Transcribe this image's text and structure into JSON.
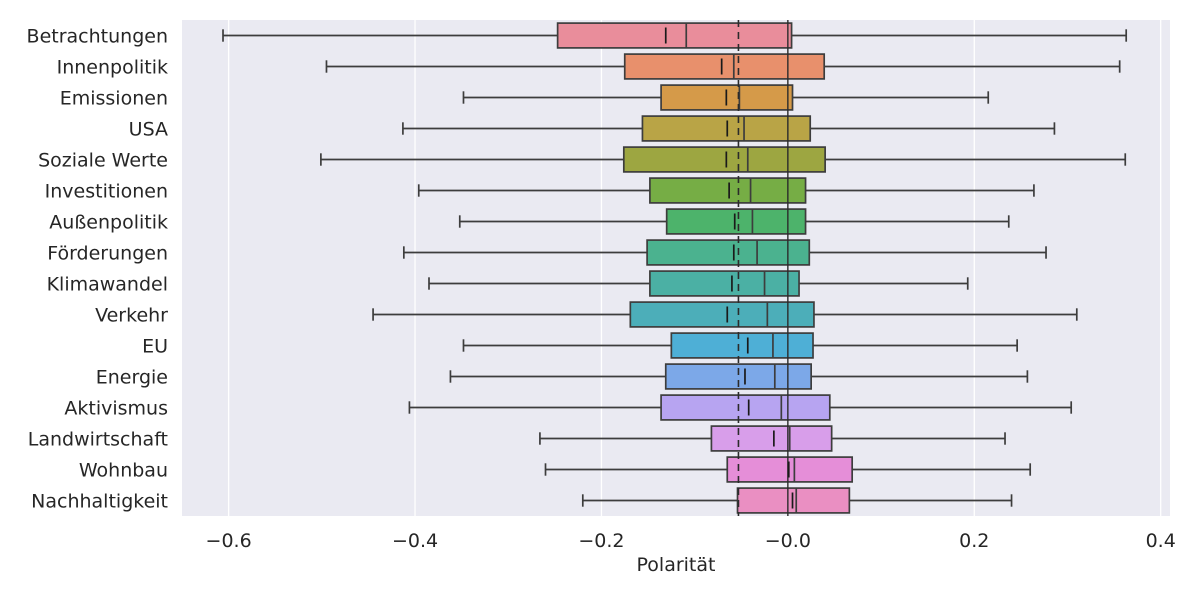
{
  "chart_data": {
    "type": "box",
    "orientation": "horizontal",
    "xlabel": "Polarität",
    "xlim": [
      -0.65,
      0.41
    ],
    "x_ticks": [
      -0.6,
      -0.4,
      -0.2,
      0.0,
      0.2,
      0.4
    ],
    "x_tick_labels": [
      "−0.6",
      "−0.4",
      "−0.2",
      "−0.0",
      "0.2",
      "0.4"
    ],
    "grid": true,
    "reference_lines": {
      "overall_mean_dashed": -0.053,
      "zero_solid": 0.0
    },
    "categories": [
      "Betrachtungen",
      "Innenpolitik",
      "Emissionen",
      "USA",
      "Soziale Werte",
      "Investitionen",
      "Außenpolitik",
      "Förderungen",
      "Klimawandel",
      "Verkehr",
      "EU",
      "Energie",
      "Aktivismus",
      "Landwirtschaft",
      "Wohnbau",
      "Nachhaltigkeit"
    ],
    "boxes": [
      {
        "category": "Betrachtungen",
        "color": "#e98d9b",
        "whisker_low": -0.606,
        "q1": -0.247,
        "median": -0.109,
        "q3": 0.004,
        "whisker_high": 0.363,
        "mean": -0.131
      },
      {
        "category": "Innenpolitik",
        "color": "#e8906c",
        "whisker_low": -0.495,
        "q1": -0.175,
        "median": -0.058,
        "q3": 0.039,
        "whisker_high": 0.356,
        "mean": -0.071
      },
      {
        "category": "Emissionen",
        "color": "#d59a49",
        "whisker_low": -0.348,
        "q1": -0.136,
        "median": -0.052,
        "q3": 0.005,
        "whisker_high": 0.215,
        "mean": -0.066
      },
      {
        "category": "USA",
        "color": "#b9a446",
        "whisker_low": -0.413,
        "q1": -0.156,
        "median": -0.047,
        "q3": 0.024,
        "whisker_high": 0.286,
        "mean": -0.065
      },
      {
        "category": "Soziale Werte",
        "color": "#9da641",
        "whisker_low": -0.501,
        "q1": -0.176,
        "median": -0.043,
        "q3": 0.04,
        "whisker_high": 0.362,
        "mean": -0.066
      },
      {
        "category": "Investitionen",
        "color": "#76ad45",
        "whisker_low": -0.396,
        "q1": -0.148,
        "median": -0.04,
        "q3": 0.019,
        "whisker_high": 0.264,
        "mean": -0.063
      },
      {
        "category": "Außenpolitik",
        "color": "#4db36b",
        "whisker_low": -0.352,
        "q1": -0.13,
        "median": -0.038,
        "q3": 0.019,
        "whisker_high": 0.237,
        "mean": -0.057
      },
      {
        "category": "Förderungen",
        "color": "#4bb28f",
        "whisker_low": -0.412,
        "q1": -0.151,
        "median": -0.033,
        "q3": 0.023,
        "whisker_high": 0.277,
        "mean": -0.058
      },
      {
        "category": "Klimawandel",
        "color": "#4bb0a4",
        "whisker_low": -0.385,
        "q1": -0.148,
        "median": -0.025,
        "q3": 0.012,
        "whisker_high": 0.193,
        "mean": -0.06
      },
      {
        "category": "Verkehr",
        "color": "#4caeb9",
        "whisker_low": -0.445,
        "q1": -0.169,
        "median": -0.022,
        "q3": 0.028,
        "whisker_high": 0.31,
        "mean": -0.065
      },
      {
        "category": "EU",
        "color": "#4eafd6",
        "whisker_low": -0.348,
        "q1": -0.125,
        "median": -0.016,
        "q3": 0.027,
        "whisker_high": 0.246,
        "mean": -0.043
      },
      {
        "category": "Energie",
        "color": "#7ca8e8",
        "whisker_low": -0.362,
        "q1": -0.131,
        "median": -0.014,
        "q3": 0.025,
        "whisker_high": 0.257,
        "mean": -0.046
      },
      {
        "category": "Aktivismus",
        "color": "#b7a4f1",
        "whisker_low": -0.406,
        "q1": -0.136,
        "median": -0.007,
        "q3": 0.045,
        "whisker_high": 0.304,
        "mean": -0.042
      },
      {
        "category": "Landwirtschaft",
        "color": "#d89eea",
        "whisker_low": -0.266,
        "q1": -0.082,
        "median": 0.002,
        "q3": 0.047,
        "whisker_high": 0.233,
        "mean": -0.015
      },
      {
        "category": "Wohnbau",
        "color": "#e58ed8",
        "whisker_low": -0.26,
        "q1": -0.065,
        "median": 0.007,
        "q3": 0.069,
        "whisker_high": 0.26,
        "mean": 0.001
      },
      {
        "category": "Nachhaltigkeit",
        "color": "#ea8fc2",
        "whisker_low": -0.22,
        "q1": -0.054,
        "median": 0.009,
        "q3": 0.066,
        "whisker_high": 0.24,
        "mean": 0.005
      }
    ]
  }
}
